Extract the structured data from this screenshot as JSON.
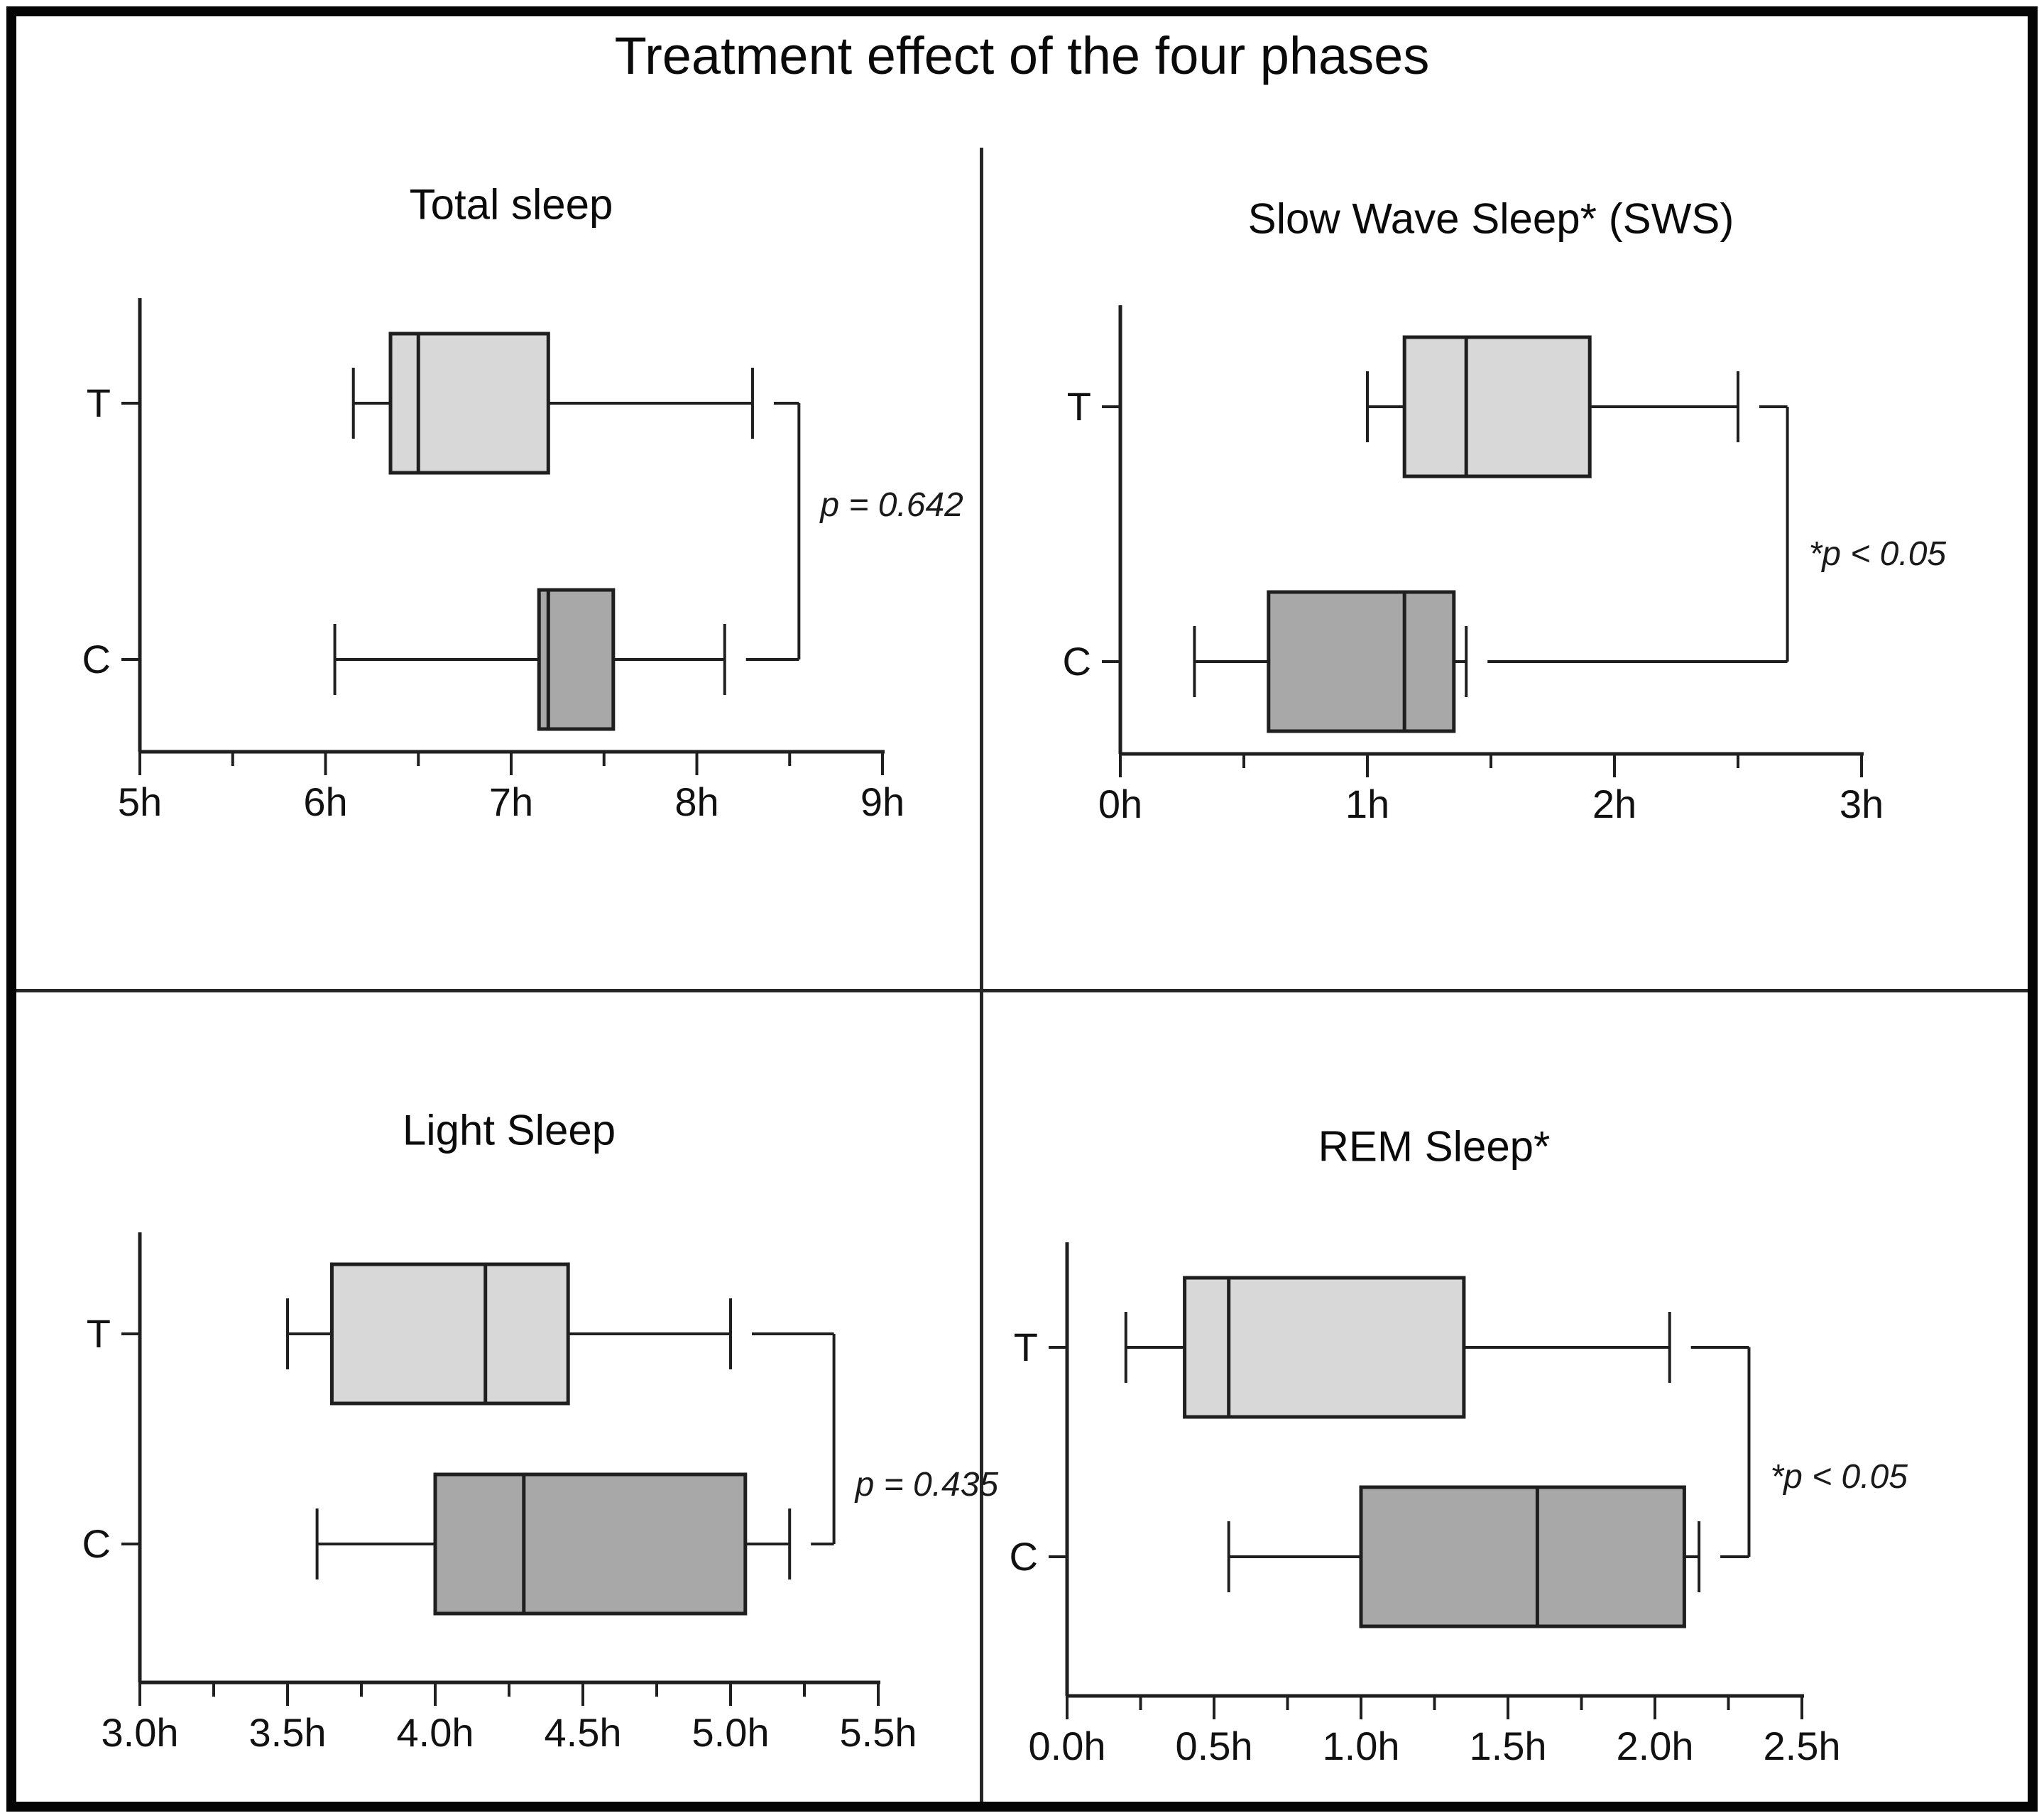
{
  "figure": {
    "title": "Treatment effect of the four phases"
  },
  "colors": {
    "treatment_box_fill": "#d8d8d8",
    "control_box_fill": "#a8a8a8",
    "line": "#1f1f1f",
    "divider": "#262626",
    "background": "#ffffff"
  },
  "chart_data": [
    {
      "id": "total-sleep",
      "type": "boxplot",
      "orientation": "horizontal",
      "title": "Total sleep",
      "x_unit": "hours",
      "axis": {
        "min": 5,
        "max": 9,
        "tick_step": 1,
        "minor_tick_step": 0.5,
        "tick_labels": [
          "5h",
          "6h",
          "7h",
          "8h",
          "9h"
        ]
      },
      "groups": [
        {
          "label": "T",
          "role": "treatment",
          "whisker_low": 6.15,
          "q1": 6.35,
          "median": 6.5,
          "q3": 7.2,
          "whisker_high": 8.3
        },
        {
          "label": "C",
          "role": "control",
          "whisker_low": 6.05,
          "q1": 7.15,
          "median": 7.2,
          "q3": 7.55,
          "whisker_high": 8.15
        }
      ],
      "significance": {
        "label": "p = 0.642",
        "bracket_x": 8.55
      }
    },
    {
      "id": "slow-wave-sleep",
      "type": "boxplot",
      "orientation": "horizontal",
      "title": "Slow Wave Sleep* (SWS)",
      "x_unit": "hours",
      "axis": {
        "min": 0,
        "max": 3,
        "tick_step": 1,
        "minor_tick_step": 0.5,
        "tick_labels": [
          "0h",
          "1h",
          "2h",
          "3h"
        ]
      },
      "groups": [
        {
          "label": "T",
          "role": "treatment",
          "whisker_low": 1.0,
          "q1": 1.15,
          "median": 1.4,
          "q3": 1.9,
          "whisker_high": 2.5
        },
        {
          "label": "C",
          "role": "control",
          "whisker_low": 0.3,
          "q1": 0.6,
          "median": 1.15,
          "q3": 1.35,
          "whisker_high": 1.4
        }
      ],
      "significance": {
        "label": "*p < 0.05",
        "bracket_x": 2.7
      }
    },
    {
      "id": "light-sleep",
      "type": "boxplot",
      "orientation": "horizontal",
      "title": "Light Sleep",
      "x_unit": "hours",
      "axis": {
        "min": 3.0,
        "max": 5.5,
        "tick_step": 0.5,
        "minor_tick_step": 0.25,
        "tick_labels": [
          "3.0h",
          "3.5h",
          "4.0h",
          "4.5h",
          "5.0h",
          "5.5h"
        ]
      },
      "groups": [
        {
          "label": "T",
          "role": "treatment",
          "whisker_low": 3.5,
          "q1": 3.65,
          "median": 4.17,
          "q3": 4.45,
          "whisker_high": 5.0
        },
        {
          "label": "C",
          "role": "control",
          "whisker_low": 3.6,
          "q1": 4.0,
          "median": 4.3,
          "q3": 5.05,
          "whisker_high": 5.2
        }
      ],
      "significance": {
        "label": "p = 0.435",
        "bracket_x": 5.35
      }
    },
    {
      "id": "rem-sleep",
      "type": "boxplot",
      "orientation": "horizontal",
      "title": "REM Sleep*",
      "x_unit": "hours",
      "axis": {
        "min": 0.0,
        "max": 2.5,
        "tick_step": 0.5,
        "minor_tick_step": 0.25,
        "tick_labels": [
          "0.0h",
          "0.5h",
          "1.0h",
          "1.5h",
          "2.0h",
          "2.5h"
        ]
      },
      "groups": [
        {
          "label": "T",
          "role": "treatment",
          "whisker_low": 0.2,
          "q1": 0.4,
          "median": 0.55,
          "q3": 1.35,
          "whisker_high": 2.05
        },
        {
          "label": "C",
          "role": "control",
          "whisker_low": 0.55,
          "q1": 1.0,
          "median": 1.6,
          "q3": 2.1,
          "whisker_high": 2.15
        }
      ],
      "significance": {
        "label": "*p < 0.05",
        "bracket_x": 2.32
      }
    }
  ]
}
